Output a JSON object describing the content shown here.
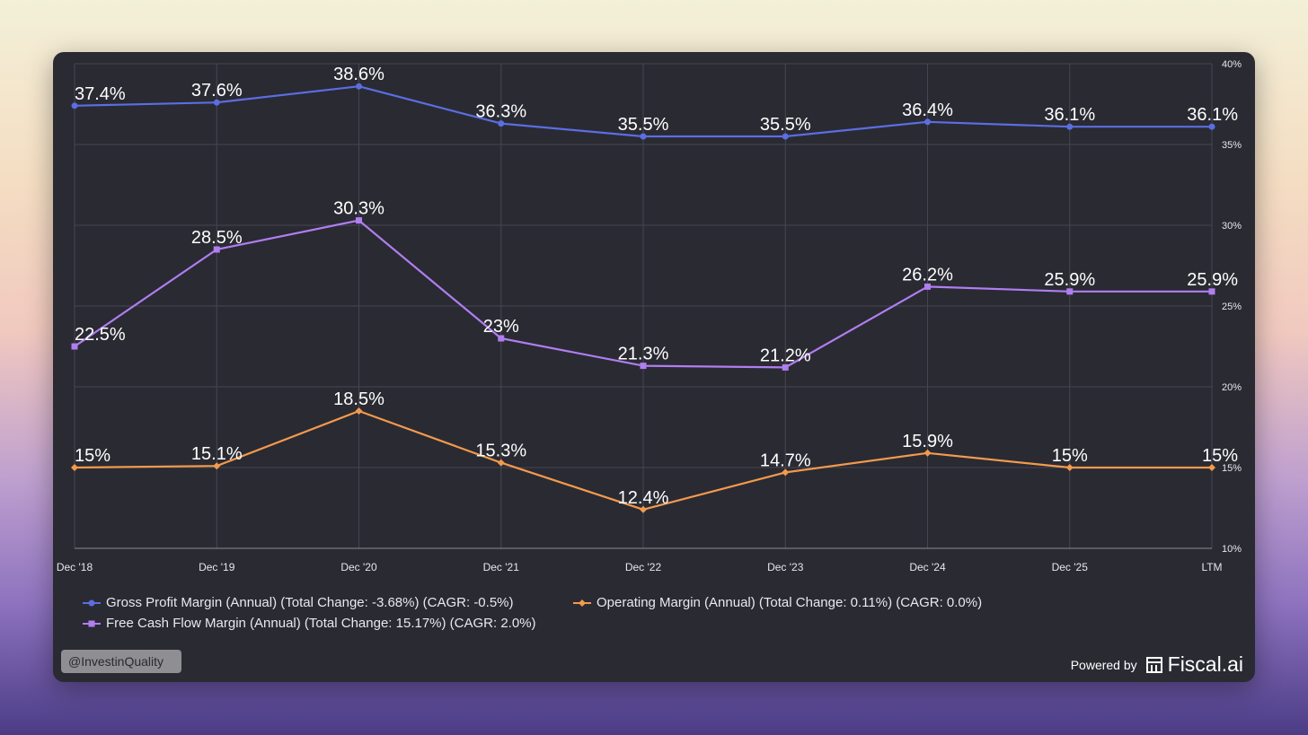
{
  "chart_data": {
    "type": "line",
    "categories": [
      "Dec '18",
      "Dec '19",
      "Dec '20",
      "Dec '21",
      "Dec '22",
      "Dec '23",
      "Dec '24",
      "Dec '25",
      "LTM"
    ],
    "ylim": [
      10,
      40
    ],
    "y_ticks": [
      10,
      15,
      20,
      25,
      30,
      35,
      40
    ],
    "y_tick_labels": [
      "10%",
      "15%",
      "20%",
      "25%",
      "30%",
      "35%",
      "40%"
    ],
    "grid": true,
    "legend_position": "bottom-left",
    "series": [
      {
        "name": "Gross Profit Margin (Annual) (Total Change: -3.68%) (CAGR: -0.5%)",
        "color": "#5b6ee1",
        "marker": "circle",
        "values": [
          37.4,
          37.6,
          38.6,
          36.3,
          35.5,
          35.5,
          36.4,
          36.1,
          36.1
        ],
        "labels": [
          "37.4%",
          "37.6%",
          "38.6%",
          "36.3%",
          "35.5%",
          "35.5%",
          "36.4%",
          "36.1%",
          "36.1%"
        ]
      },
      {
        "name": "Free Cash Flow Margin (Annual) (Total Change: 15.17%) (CAGR: 2.0%)",
        "color": "#b07ef0",
        "marker": "square",
        "values": [
          22.5,
          28.5,
          30.3,
          23,
          21.3,
          21.2,
          26.2,
          25.9,
          25.9
        ],
        "labels": [
          "22.5%",
          "28.5%",
          "30.3%",
          "23%",
          "21.3%",
          "21.2%",
          "26.2%",
          "25.9%",
          "25.9%"
        ]
      },
      {
        "name": "Operating Margin (Annual) (Total Change: 0.11%) (CAGR: 0.0%)",
        "color": "#f39a4c",
        "marker": "diamond",
        "values": [
          15,
          15.1,
          18.5,
          15.3,
          12.4,
          14.7,
          15.9,
          15,
          15
        ],
        "labels": [
          "15%",
          "15.1%",
          "18.5%",
          "15.3%",
          "12.4%",
          "14.7%",
          "15.9%",
          "15%",
          "15%"
        ]
      }
    ]
  },
  "watermark": "@InvestinQuality",
  "footer": {
    "powered_by": "Powered by",
    "brand": "Fiscal.ai",
    "brand_icon": "fiscal-logo-icon"
  }
}
